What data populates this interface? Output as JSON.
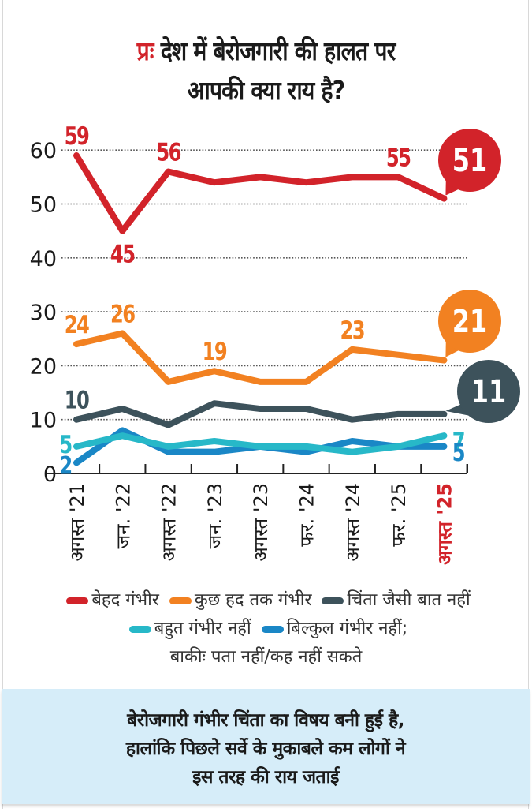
{
  "title": {
    "prefix": "प्रः",
    "line1": "देश में बेरोजगारी की हालत पर",
    "line2": "आपकी क्या राय है?"
  },
  "chart_data": {
    "type": "line",
    "title": "प्रः देश में बेरोजगारी की हालत पर आपकी क्या राय है?",
    "xlabel": "",
    "ylabel": "",
    "ylim": [
      0,
      60
    ],
    "yticks": [
      0,
      10,
      20,
      30,
      40,
      50,
      60
    ],
    "grid": "horizontal-dotted",
    "categories": [
      "अगस्त '21",
      "जन. '22",
      "अगस्त '22",
      "जन. '23",
      "अगस्त '23",
      "फर. '24",
      "अगस्त '24",
      "फर. '25",
      "अगस्त '25"
    ],
    "highlight_category": "अगस्त '25",
    "series": [
      {
        "name": "बेहद गंभीर",
        "color": "#d2232a",
        "values": [
          59,
          45,
          56,
          54,
          55,
          54,
          55,
          55,
          51
        ],
        "labels": [
          {
            "index": 0,
            "text": "59",
            "pos": "above"
          },
          {
            "index": 1,
            "text": "45",
            "pos": "below"
          },
          {
            "index": 2,
            "text": "56",
            "pos": "above"
          },
          {
            "index": 7,
            "text": "55",
            "pos": "above"
          }
        ],
        "callout": "51"
      },
      {
        "name": "कुछ हद तक गंभीर",
        "color": "#f28121",
        "values": [
          24,
          26,
          17,
          19,
          17,
          17,
          23,
          22,
          21
        ],
        "labels": [
          {
            "index": 0,
            "text": "24",
            "pos": "above"
          },
          {
            "index": 1,
            "text": "26",
            "pos": "above"
          },
          {
            "index": 3,
            "text": "19",
            "pos": "above"
          },
          {
            "index": 6,
            "text": "23",
            "pos": "above"
          }
        ],
        "callout": "21"
      },
      {
        "name": "चिंता जैसी बात नहीं",
        "color": "#3d525b",
        "values": [
          10,
          12,
          9,
          13,
          12,
          12,
          10,
          11,
          11
        ],
        "labels": [
          {
            "index": 0,
            "text": "10",
            "pos": "above"
          }
        ],
        "callout": "11"
      },
      {
        "name": "बहुत गंभीर नहीं",
        "color": "#27b8c8",
        "values": [
          5,
          7,
          5,
          6,
          5,
          5,
          4,
          5,
          7
        ],
        "labels": [
          {
            "index": 0,
            "text": "5",
            "pos": "left"
          },
          {
            "index": 8,
            "text": "7",
            "pos": "right"
          }
        ]
      },
      {
        "name": "बिल्कुल गंभीर नहीं",
        "color": "#1a87c6",
        "values": [
          2,
          8,
          4,
          4,
          5,
          4,
          6,
          5,
          5
        ],
        "labels": [
          {
            "index": 0,
            "text": "2",
            "pos": "left"
          },
          {
            "index": 8,
            "text": "5",
            "pos": "right"
          }
        ]
      }
    ],
    "legend": "bottom"
  },
  "legend": {
    "items": [
      {
        "label": "बेहद गंभीर",
        "color": "#d2232a"
      },
      {
        "label": "कुछ हद तक गंभीर",
        "color": "#f28121"
      },
      {
        "label": "चिंता जैसी बात नहीं",
        "color": "#3d525b"
      },
      {
        "label": "बहुत गंभीर नहीं",
        "color": "#27b8c8"
      },
      {
        "label": "बिल्कुल गंभीर नहीं;",
        "color": "#1a87c6"
      }
    ],
    "note": "बाकीः पता नहीं/कह नहीं सकते"
  },
  "footer": {
    "line1": "बेरोजगारी गंभीर चिंता का विषय बनी हुई है,",
    "line2": "हालांकि पिछले सर्वे के मुकाबले कम लोगों ने",
    "line3": "इस तरह की राय जताई"
  }
}
